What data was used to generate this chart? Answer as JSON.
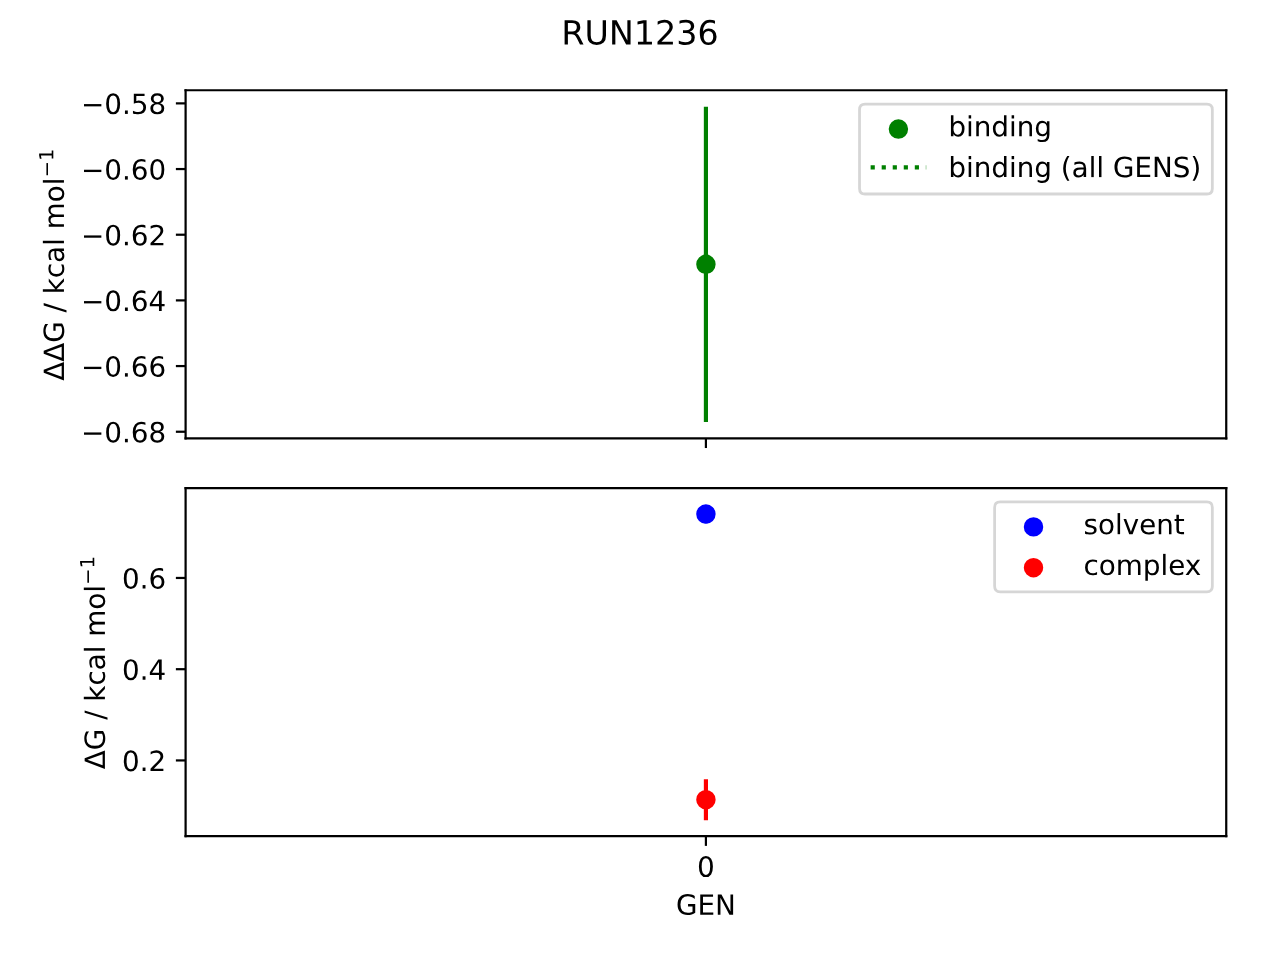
{
  "chart_data": [
    {
      "type": "scatter",
      "title": "RUN1236",
      "ylabel": "ΔΔG / kcal mol$^{−1}$",
      "categories": [
        null
      ],
      "ylim": [
        -0.682,
        -0.576
      ],
      "yticks": [
        {
          "value": -0.68,
          "label": "−0.68"
        },
        {
          "value": -0.66,
          "label": "−0.66"
        },
        {
          "value": -0.64,
          "label": "−0.64"
        },
        {
          "value": -0.62,
          "label": "−0.62"
        },
        {
          "value": -0.6,
          "label": "−0.60"
        },
        {
          "value": -0.58,
          "label": "−0.58"
        }
      ],
      "tick_labels": "y",
      "legend": "top right",
      "marker": "circle",
      "series": [
        {
          "name": "binding",
          "color": "#008000",
          "values": [
            -0.629
          ],
          "errors": [
            0.048
          ]
        },
        {
          "name": "binding (all GENS)",
          "type": "line",
          "color": "#008000",
          "line_style": "dotted",
          "values": [
            null
          ]
        }
      ]
    },
    {
      "type": "scatter",
      "ylabel": "ΔG / kcal mol$^{−1}$",
      "xlabel": "GEN",
      "categories": [
        "0"
      ],
      "ylim": [
        0.034,
        0.797
      ],
      "yticks": [
        0.2,
        0.4,
        0.6
      ],
      "legend": "top right",
      "marker": "circle",
      "series": [
        {
          "name": "solvent",
          "color": "#0000ff",
          "values": [
            0.74
          ],
          "errors": [
            0.02
          ]
        },
        {
          "name": "complex",
          "color": "#ff0000",
          "values": [
            0.114
          ],
          "errors": [
            0.045
          ]
        }
      ]
    }
  ]
}
